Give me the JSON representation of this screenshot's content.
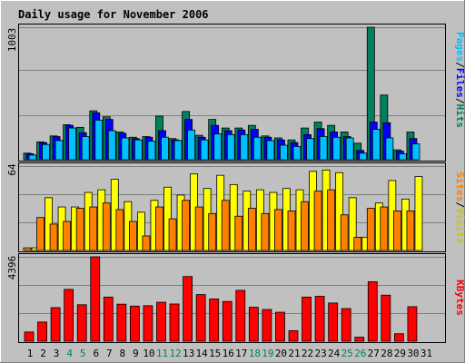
{
  "title": "Daily usage for November 2006",
  "colors": {
    "background": "#c0c0c0",
    "plot_bg": "#c0c0c0",
    "grid": "#808080",
    "title": "#0000ff",
    "hits": "#00805c",
    "files": "#0000ff",
    "pages": "#00c0ff",
    "visits": "#ffff00",
    "sites": "#ff8000",
    "kbytes": "#ff0000",
    "weekend_label": "#00805c",
    "weekday_label": "#000000"
  },
  "legend_top": {
    "pages": "Pages",
    "files": "Files",
    "hits": "Hits",
    "sep": "/"
  },
  "legend_mid": {
    "sites": "Sites",
    "visits": "Visits",
    "sep": "/"
  },
  "legend_bottom": {
    "kbytes": "KBytes"
  },
  "chart_data": [
    {
      "type": "bar",
      "title": "Daily usage for November 2006",
      "ymax_label": "1003",
      "ylim": [
        0,
        1003
      ],
      "categories": [
        "1",
        "2",
        "3",
        "4",
        "5",
        "6",
        "7",
        "8",
        "9",
        "10",
        "11",
        "12",
        "13",
        "14",
        "15",
        "16",
        "17",
        "18",
        "19",
        "20",
        "21",
        "22",
        "23",
        "24",
        "25",
        "26",
        "27",
        "28",
        "29",
        "30",
        "31"
      ],
      "weekend_days": [
        "4",
        "5",
        "11",
        "12",
        "18",
        "19",
        "25",
        "26"
      ],
      "series": [
        {
          "name": "Hits",
          "values": [
            50,
            135,
            180,
            265,
            245,
            370,
            325,
            210,
            170,
            175,
            330,
            160,
            365,
            185,
            305,
            240,
            240,
            260,
            180,
            165,
            150,
            240,
            285,
            260,
            210,
            125,
            1003,
            490,
            75,
            210,
            0
          ]
        },
        {
          "name": "Files",
          "values": [
            45,
            130,
            175,
            260,
            205,
            355,
            305,
            200,
            160,
            170,
            220,
            150,
            305,
            170,
            260,
            220,
            225,
            230,
            170,
            150,
            130,
            190,
            235,
            210,
            175,
            70,
            285,
            280,
            65,
            160,
            0
          ]
        },
        {
          "name": "Pages",
          "values": [
            35,
            115,
            145,
            240,
            175,
            300,
            220,
            165,
            150,
            140,
            170,
            145,
            225,
            150,
            195,
            190,
            190,
            170,
            145,
            110,
            100,
            160,
            175,
            170,
            165,
            50,
            230,
            165,
            45,
            120,
            0
          ]
        }
      ]
    },
    {
      "type": "bar",
      "ymax_label": "64",
      "ylim": [
        0,
        64
      ],
      "categories": [
        "1",
        "2",
        "3",
        "4",
        "5",
        "6",
        "7",
        "8",
        "9",
        "10",
        "11",
        "12",
        "13",
        "14",
        "15",
        "16",
        "17",
        "18",
        "19",
        "20",
        "21",
        "22",
        "23",
        "24",
        "25",
        "26",
        "27",
        "28",
        "29",
        "30",
        "31"
      ],
      "series": [
        {
          "name": "Visits",
          "values": [
            2,
            40,
            33,
            33,
            44,
            46,
            54,
            37,
            29,
            38,
            48,
            42,
            58,
            47,
            57,
            50,
            45,
            46,
            44,
            47,
            46,
            60,
            61,
            59,
            40,
            10,
            36,
            53,
            39,
            56,
            0
          ]
        },
        {
          "name": "Sites",
          "values": [
            2,
            25,
            20,
            22,
            32,
            33,
            36,
            31,
            22,
            11,
            33,
            24,
            38,
            33,
            28,
            38,
            26,
            32,
            28,
            31,
            30,
            37,
            45,
            46,
            27,
            10,
            32,
            33,
            30,
            30,
            0
          ]
        }
      ]
    },
    {
      "type": "bar",
      "ymax_label": "4396",
      "ylim": [
        0,
        4396
      ],
      "categories": [
        "1",
        "2",
        "3",
        "4",
        "5",
        "6",
        "7",
        "8",
        "9",
        "10",
        "11",
        "12",
        "13",
        "14",
        "15",
        "16",
        "17",
        "18",
        "19",
        "20",
        "21",
        "22",
        "23",
        "24",
        "25",
        "26",
        "27",
        "28",
        "29",
        "30",
        "31"
      ],
      "series": [
        {
          "name": "KBytes",
          "values": [
            480,
            1000,
            1750,
            2700,
            1900,
            4396,
            2300,
            1930,
            1830,
            1850,
            2030,
            1940,
            3370,
            2430,
            2200,
            2070,
            2650,
            1770,
            1650,
            1510,
            550,
            2300,
            2340,
            1990,
            1700,
            210,
            3100,
            2400,
            390,
            1800,
            0
          ]
        }
      ]
    }
  ]
}
